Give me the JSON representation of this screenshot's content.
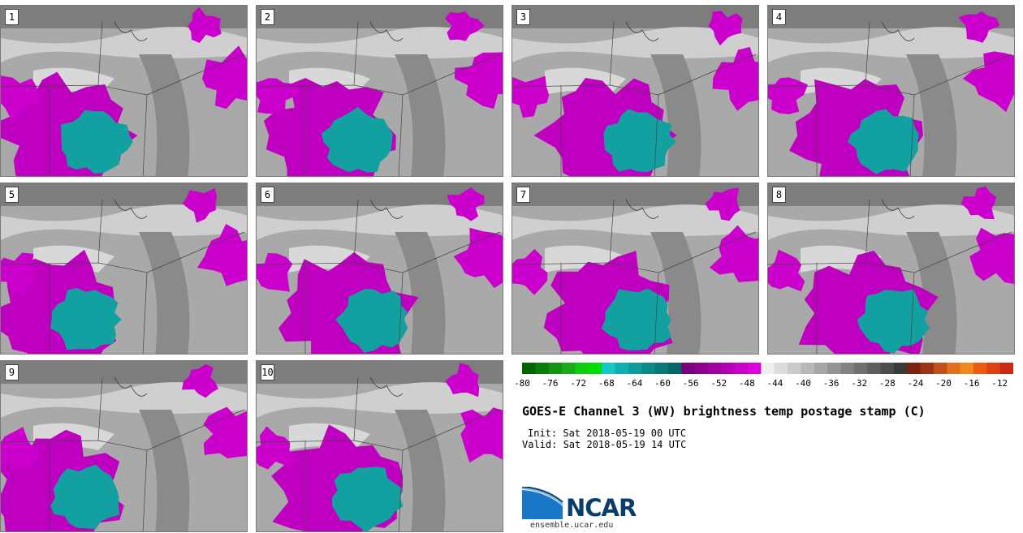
{
  "panels": [
    {
      "label": "1"
    },
    {
      "label": "2"
    },
    {
      "label": "3"
    },
    {
      "label": "4"
    },
    {
      "label": "5"
    },
    {
      "label": "6"
    },
    {
      "label": "7"
    },
    {
      "label": "8"
    },
    {
      "label": "9"
    },
    {
      "label": "10"
    }
  ],
  "colorbar": {
    "colors": [
      "#006400",
      "#0b7d0b",
      "#129412",
      "#19ab19",
      "#10cc10",
      "#00e000",
      "#14c8c8",
      "#10b0b0",
      "#0e9c9c",
      "#0b8a8a",
      "#097878",
      "#076666",
      "#7a007a",
      "#8c008c",
      "#a000a0",
      "#b400b4",
      "#c800c8",
      "#dc00dc",
      "#eeeeee",
      "#dcdcdc",
      "#cacaca",
      "#b8b8b8",
      "#a6a6a6",
      "#949494",
      "#828282",
      "#707070",
      "#5e5e5e",
      "#4c4c4c",
      "#3a3a3a",
      "#7a2410",
      "#9a3416",
      "#c0501e",
      "#e07020",
      "#f08a1c",
      "#f05a10",
      "#e04010",
      "#cc2a10"
    ],
    "ticks": [
      "-80",
      "-76",
      "-72",
      "-68",
      "-64",
      "-60",
      "-56",
      "-52",
      "-48",
      "-44",
      "-40",
      "-36",
      "-32",
      "-28",
      "-24",
      "-20",
      "-16",
      "-12"
    ]
  },
  "title": "GOES-E Channel 3 (WV) brightness temp postage stamp (C)",
  "init": "Init: Sat 2018-05-19 00 UTC",
  "valid": "Valid: Sat 2018-05-19 14 UTC",
  "logo": {
    "text": "NCAR",
    "site": "ensemble.ucar.edu"
  }
}
